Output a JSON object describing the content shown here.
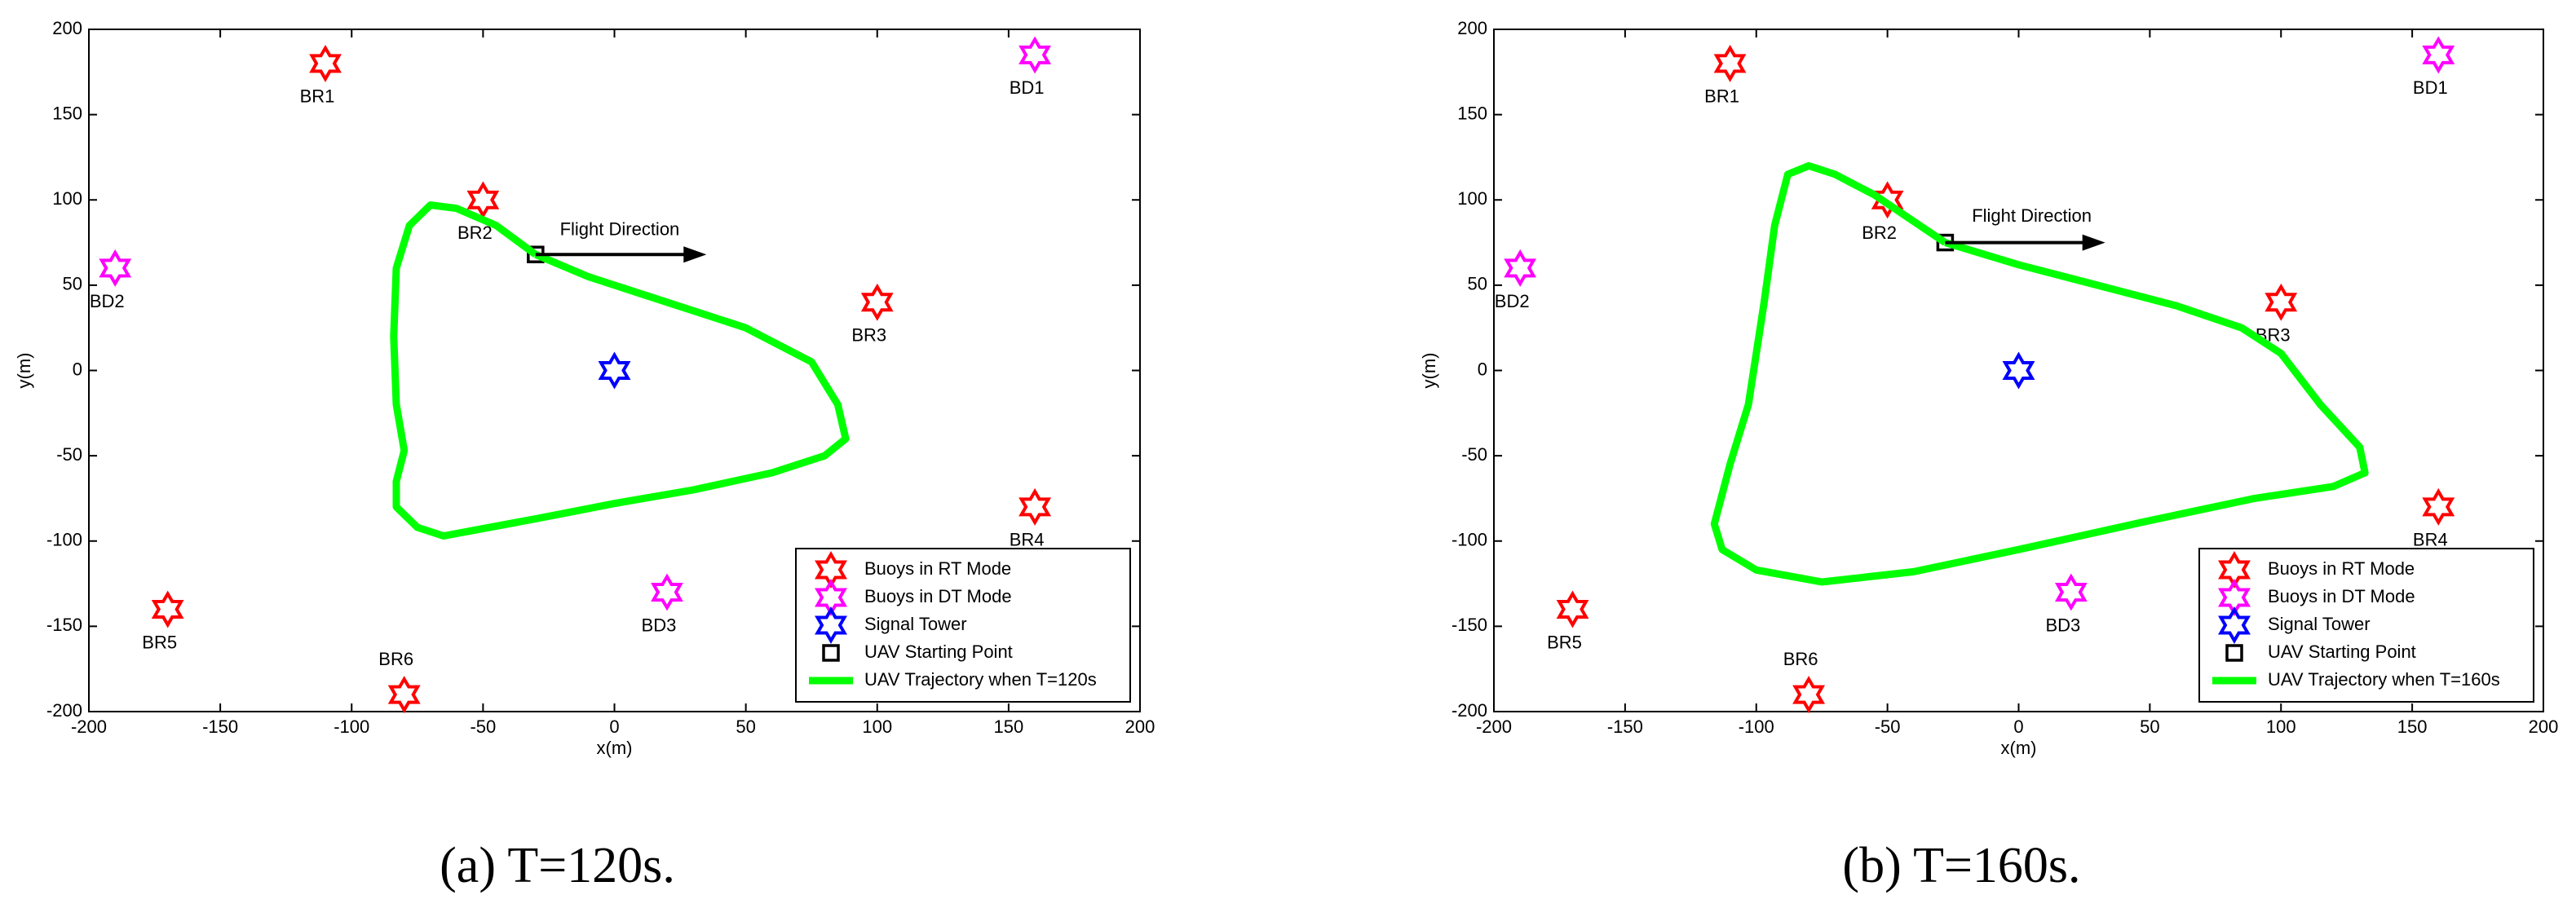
{
  "chart_data": [
    {
      "type": "scatter",
      "caption": "(a)  T=120s.",
      "xlabel": "x(m)",
      "ylabel": "y(m)",
      "xlim": [
        -200,
        200
      ],
      "ylim": [
        -200,
        200
      ],
      "xticks": [
        -200,
        -150,
        -100,
        -50,
        0,
        50,
        100,
        150,
        200
      ],
      "yticks": [
        -200,
        -150,
        -100,
        -50,
        0,
        50,
        100,
        150,
        200
      ],
      "legend": "lower right",
      "annotation": {
        "text": "Flight Direction",
        "x": 2,
        "y": 82,
        "arrow": [
          -30,
          68,
          35,
          68
        ]
      },
      "series": [
        {
          "name": "Buoys in RT Mode",
          "color": "#ff0000",
          "marker": "hexagram",
          "x": [
            -110,
            -50,
            100,
            160,
            -170,
            -80
          ],
          "y": [
            180,
            100,
            40,
            -80,
            -140,
            -190
          ],
          "labels": [
            "BR1",
            "BR2",
            "BR3",
            "BR4",
            "BR5",
            "BR6"
          ]
        },
        {
          "name": "Buoys in DT Mode",
          "color": "#ff00ff",
          "marker": "hexagram",
          "x": [
            160,
            -190,
            20
          ],
          "y": [
            185,
            60,
            -130
          ],
          "labels": [
            "BD1",
            "BD2",
            "BD3"
          ]
        },
        {
          "name": "Signal Tower",
          "color": "#0000ff",
          "marker": "hexagram",
          "x": [
            0
          ],
          "y": [
            0
          ]
        },
        {
          "name": "UAV Starting Point",
          "color": "#000000",
          "marker": "square",
          "x": [
            -30
          ],
          "y": [
            68
          ]
        },
        {
          "name": "UAV Trajectory when T=120s",
          "color": "#00ff00",
          "marker": "line",
          "x": [
            -30,
            -10,
            20,
            50,
            75,
            85,
            88,
            80,
            60,
            30,
            0,
            -30,
            -65,
            -75,
            -83,
            -83,
            -80,
            -83,
            -84,
            -83,
            -78,
            -70,
            -60,
            -45,
            -30
          ],
          "y": [
            68,
            55,
            40,
            25,
            5,
            -20,
            -40,
            -50,
            -60,
            -70,
            -78,
            -87,
            -97,
            -92,
            -80,
            -65,
            -47,
            -20,
            20,
            60,
            85,
            97,
            95,
            85,
            68
          ]
        }
      ]
    },
    {
      "type": "scatter",
      "caption": "(b)  T=160s.",
      "xlabel": "x(m)",
      "ylabel": "y(m)",
      "xlim": [
        -200,
        200
      ],
      "ylim": [
        -200,
        200
      ],
      "xticks": [
        -200,
        -150,
        -100,
        -50,
        0,
        50,
        100,
        150,
        200
      ],
      "yticks": [
        -200,
        -150,
        -100,
        -50,
        0,
        50,
        100,
        150,
        200
      ],
      "legend": "lower right",
      "annotation": {
        "text": "Flight Direction",
        "x": 5,
        "y": 90,
        "arrow": [
          -28,
          75,
          33,
          75
        ]
      },
      "series": [
        {
          "name": "Buoys in RT Mode",
          "color": "#ff0000",
          "marker": "hexagram",
          "x": [
            -110,
            -50,
            100,
            160,
            -170,
            -80
          ],
          "y": [
            180,
            100,
            40,
            -80,
            -140,
            -190
          ],
          "labels": [
            "BR1",
            "BR2",
            "BR3",
            "BR4",
            "BR5",
            "BR6"
          ]
        },
        {
          "name": "Buoys in DT Mode",
          "color": "#ff00ff",
          "marker": "hexagram",
          "x": [
            160,
            -190,
            20
          ],
          "y": [
            185,
            60,
            -130
          ],
          "labels": [
            "BD1",
            "BD2",
            "BD3"
          ]
        },
        {
          "name": "Signal Tower",
          "color": "#0000ff",
          "marker": "hexagram",
          "x": [
            0
          ],
          "y": [
            0
          ]
        },
        {
          "name": "UAV Starting Point",
          "color": "#000000",
          "marker": "square",
          "x": [
            -28
          ],
          "y": [
            75
          ]
        },
        {
          "name": "UAV Trajectory when T=160s",
          "color": "#00ff00",
          "marker": "line",
          "x": [
            -28,
            0,
            30,
            60,
            85,
            100,
            115,
            130,
            132,
            120,
            90,
            50,
            0,
            -40,
            -75,
            -100,
            -113,
            -116,
            -110,
            -103,
            -97,
            -93,
            -88,
            -80,
            -70,
            -55,
            -28
          ],
          "y": [
            75,
            62,
            50,
            38,
            25,
            10,
            -20,
            -45,
            -60,
            -68,
            -75,
            -88,
            -105,
            -118,
            -124,
            -117,
            -105,
            -90,
            -55,
            -20,
            40,
            85,
            115,
            120,
            115,
            103,
            75
          ]
        }
      ]
    }
  ]
}
